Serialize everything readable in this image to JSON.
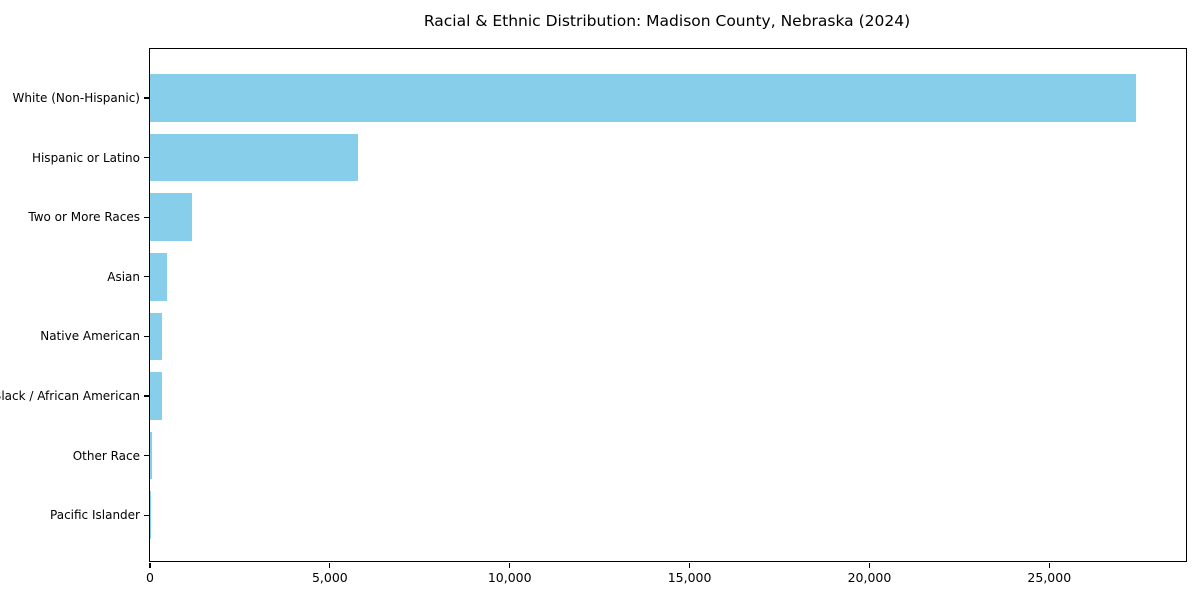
{
  "chart_data": {
    "type": "bar",
    "orientation": "horizontal",
    "title": "Racial & Ethnic Distribution: Madison County, Nebraska (2024)",
    "categories": [
      "White (Non-Hispanic)",
      "Hispanic or Latino",
      "Two or More Races",
      "Asian",
      "Native American",
      "Black / African American",
      "Other Race",
      "Pacific Islander"
    ],
    "values": [
      27400,
      5780,
      1160,
      465,
      345,
      325,
      50,
      15
    ],
    "xlabel": "",
    "ylabel": "",
    "xlim": [
      0,
      28800
    ],
    "xticks": [
      0,
      5000,
      10000,
      15000,
      20000,
      25000
    ],
    "xtick_labels": [
      "0",
      "5,000",
      "10,000",
      "15,000",
      "20,000",
      "25,000"
    ],
    "bar_color": "#87CEEB",
    "grid": false,
    "legend": null,
    "frame": true
  }
}
